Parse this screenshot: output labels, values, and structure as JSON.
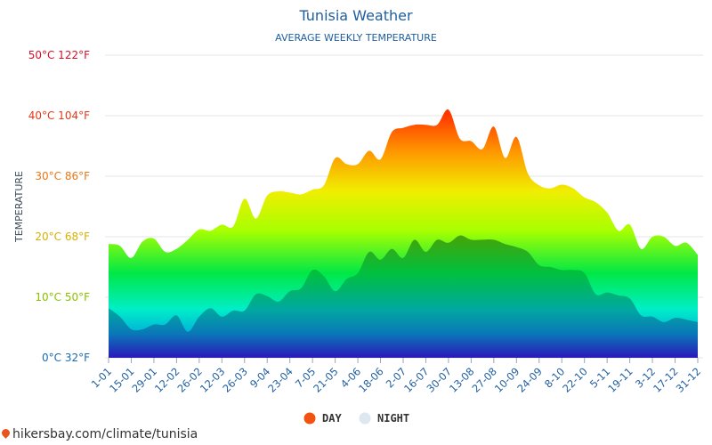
{
  "chart_data": {
    "type": "area",
    "title": "Tunisia Weather",
    "subtitle": "AVERAGE WEEKLY TEMPERATURE",
    "ylabel": "TEMPERATURE",
    "ylim": [
      0,
      50
    ],
    "ytick_values": [
      0,
      10,
      20,
      30,
      40,
      50
    ],
    "ytick_labels": [
      "0°C 32°F",
      "10°C 50°F",
      "20°C 68°F",
      "30°C 86°F",
      "40°C 104°F",
      "50°C 122°F"
    ],
    "ytick_colors": [
      "#1a6bb0",
      "#8ac000",
      "#d8b000",
      "#e87818",
      "#e23a1a",
      "#d4102a"
    ],
    "x_labels": [
      "1-01",
      "15-01",
      "29-01",
      "12-02",
      "26-02",
      "12-03",
      "26-03",
      "9-04",
      "23-04",
      "7-05",
      "21-05",
      "4-06",
      "18-06",
      "2-07",
      "16-07",
      "30-07",
      "13-08",
      "27-08",
      "10-09",
      "24-09",
      "8-10",
      "22-10",
      "5-11",
      "19-11",
      "3-12",
      "17-12",
      "31-12"
    ],
    "grid": true,
    "legend_position": "bottom",
    "series": [
      {
        "name": "DAY",
        "color": "#f2520f",
        "values": [
          18.8,
          18.5,
          16.5,
          19.2,
          19.7,
          17.5,
          18.0,
          19.5,
          21.2,
          21.0,
          22.0,
          21.7,
          26.3,
          23.0,
          26.8,
          27.5,
          27.3,
          27.0,
          27.8,
          28.5,
          33.0,
          32.0,
          32.0,
          34.2,
          32.8,
          37.3,
          38.0,
          38.5,
          38.5,
          38.5,
          41.0,
          36.2,
          35.8,
          34.5,
          38.2,
          33.0,
          36.5,
          30.5,
          28.5,
          28.0,
          28.6,
          28.0,
          26.5,
          25.7,
          24.0,
          21.0,
          22.0,
          18.0,
          20.0,
          20.0,
          18.5,
          19.0,
          17.0
        ]
      },
      {
        "name": "NIGHT",
        "color": "#dde7f0",
        "values": [
          8.2,
          6.8,
          4.7,
          4.7,
          5.5,
          5.5,
          7.0,
          4.3,
          6.8,
          8.2,
          6.8,
          7.8,
          7.8,
          10.5,
          10.2,
          9.3,
          11.0,
          11.5,
          14.5,
          13.5,
          11.0,
          13.0,
          14.0,
          17.5,
          16.2,
          18.0,
          16.5,
          19.5,
          17.5,
          19.5,
          19.0,
          20.2,
          19.5,
          19.5,
          19.5,
          18.8,
          18.3,
          17.5,
          15.3,
          15.0,
          14.5,
          14.5,
          14.0,
          10.5,
          10.8,
          10.3,
          9.8,
          7.0,
          6.8,
          5.9,
          6.6,
          6.3,
          5.9
        ]
      }
    ]
  },
  "watermark": {
    "text": "hikersbay.com/climate/tunisia",
    "icon": "map-pin-icon"
  }
}
